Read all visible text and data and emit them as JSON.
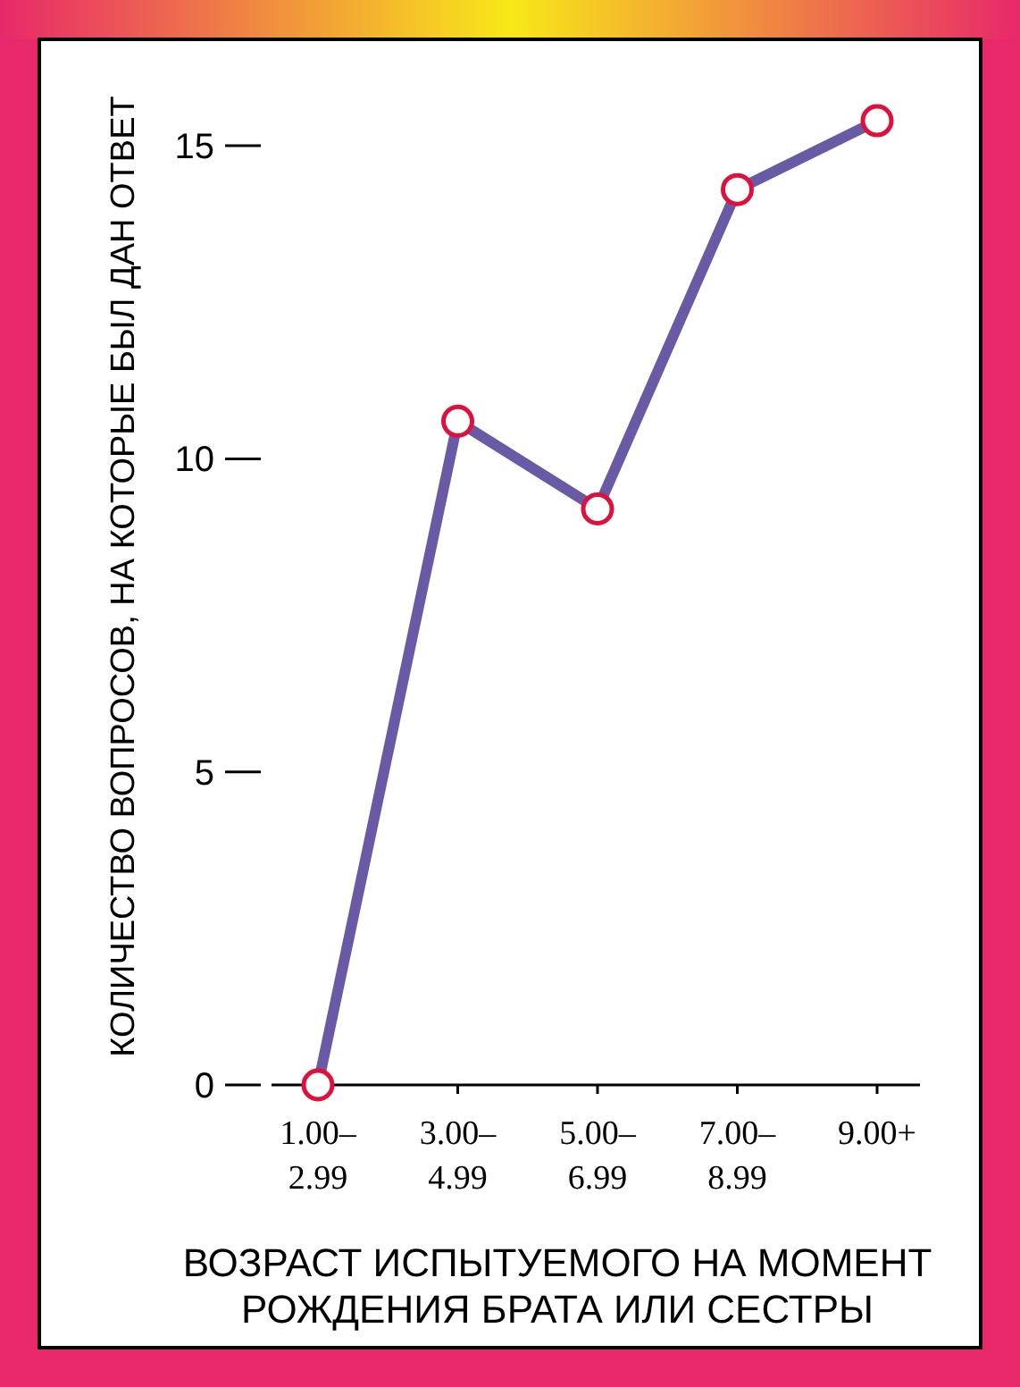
{
  "chart_data": {
    "type": "line",
    "xlabel": "ВОЗРАСТ ИСПЫТУЕМОГО НА МОМЕНТ РОЖДЕНИЯ БРАТА ИЛИ СЕСТРЫ",
    "ylabel": "КОЛИЧЕСТВО ВОПРОСОВ, НА КОТОРЫЕ БЫЛ ДАН ОТВЕТ",
    "categories": [
      "1.00–2.99",
      "3.00–4.99",
      "5.00–6.99",
      "7.00–8.99",
      "9.00+"
    ],
    "series": [
      {
        "color": "#6a5aa6",
        "values": [
          0,
          10.6,
          9.2,
          14.3,
          15.4
        ]
      }
    ],
    "ylim": [
      0,
      16.7
    ],
    "yticks": [
      0,
      5,
      10,
      15
    ],
    "marker": "circle",
    "line_style": "solid"
  }
}
